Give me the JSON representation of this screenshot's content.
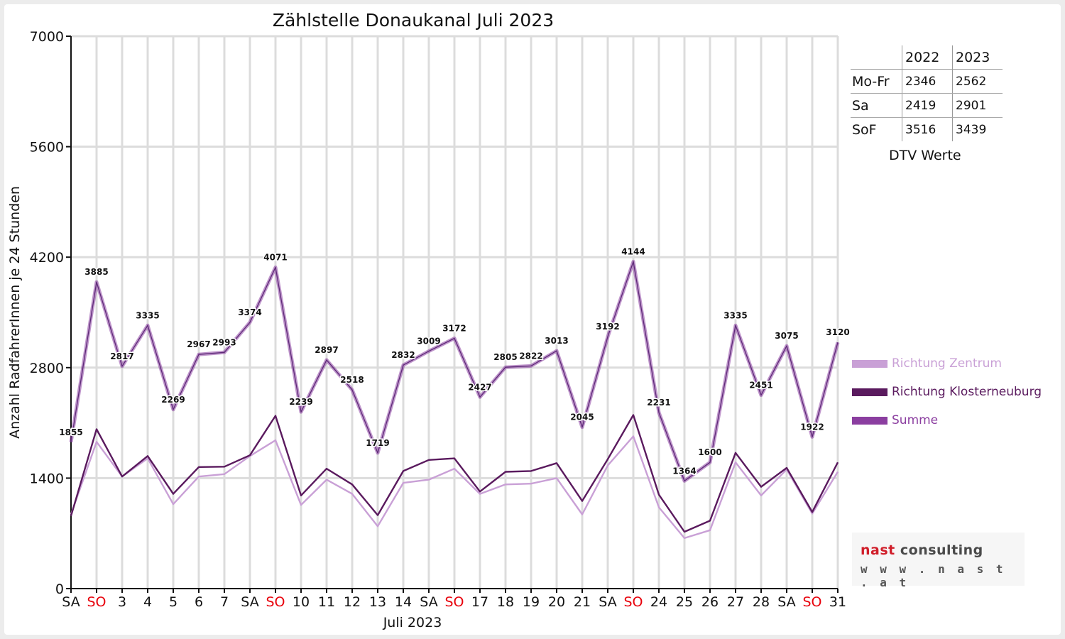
{
  "chart_data": {
    "type": "line",
    "title": "Zählstelle Donaukanal Juli 2023",
    "xlabel": "Juli 2023",
    "ylabel": "Anzahl RadfahrerInnen je 24 Stunden",
    "ylim": [
      0,
      7000
    ],
    "yticks": [
      "0",
      "1400",
      "2800",
      "4200",
      "5600",
      "7000"
    ],
    "grid": true,
    "legend_position": "right",
    "categories": [
      "SA",
      "SO",
      "3",
      "4",
      "5",
      "6",
      "7",
      "SA",
      "SO",
      "10",
      "11",
      "12",
      "13",
      "14",
      "SA",
      "SO",
      "17",
      "18",
      "19",
      "20",
      "21",
      "SA",
      "SO",
      "24",
      "25",
      "26",
      "27",
      "28",
      "SA",
      "SO",
      "31"
    ],
    "weekend_color": "#e8000b",
    "weekday_color": "#111111",
    "series": [
      {
        "name": "Richtung Zentrum",
        "color": "#c9a0d6",
        "values": [
          940,
          1860,
          1420,
          1650,
          1070,
          1420,
          1450,
          1680,
          1880,
          1060,
          1380,
          1200,
          790,
          1340,
          1380,
          1520,
          1200,
          1320,
          1330,
          1400,
          940,
          1560,
          1930,
          1030,
          640,
          740,
          1600,
          1180,
          1510,
          950,
          1480
        ]
      },
      {
        "name": "Richtung Klosterneuburg",
        "color": "#5a1a5e",
        "values": [
          920,
          2020,
          1420,
          1680,
          1200,
          1540,
          1545,
          1690,
          2190,
          1180,
          1520,
          1320,
          930,
          1490,
          1630,
          1650,
          1230,
          1480,
          1490,
          1590,
          1110,
          1640,
          2200,
          1190,
          720,
          860,
          1720,
          1290,
          1530,
          970,
          1600
        ]
      },
      {
        "name": "Summe",
        "color": "#8b3ea0",
        "values": [
          1855,
          3885,
          2817,
          3335,
          2269,
          2967,
          2993,
          3374,
          4071,
          2239,
          2897,
          2518,
          1719,
          2832,
          3009,
          3172,
          2427,
          2805,
          2822,
          3013,
          2045,
          3192,
          4144,
          2231,
          1364,
          1600,
          3335,
          2451,
          3075,
          1922,
          3120
        ]
      }
    ],
    "data_labels": [
      "1855",
      "3885",
      "2817",
      "3335",
      "2269",
      "2967",
      "2993",
      "3374",
      "4071",
      "2239",
      "2897",
      "2518",
      "1719",
      "2832",
      "3009",
      "3172",
      "2427",
      "2805",
      "2822",
      "3013",
      "2045",
      "3192",
      "4144",
      "2231",
      "1364",
      "1600",
      "3335",
      "2451",
      "3075",
      "1922",
      "3120"
    ]
  },
  "dtv": {
    "caption": "DTV Werte",
    "years": [
      "2022",
      "2023"
    ],
    "rows": [
      {
        "label": "Mo-Fr",
        "values": [
          "2346",
          "2562"
        ]
      },
      {
        "label": "Sa",
        "values": [
          "2419",
          "2901"
        ]
      },
      {
        "label": "SoF",
        "values": [
          "3516",
          "3439"
        ]
      }
    ]
  },
  "logo": {
    "word1": "nast",
    "word2": "consulting",
    "url": "w w w . n a s t . a t"
  }
}
